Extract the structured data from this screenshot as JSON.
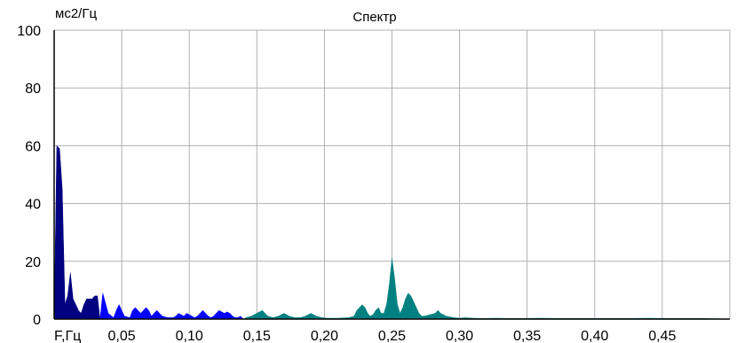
{
  "chart_data": {
    "type": "area",
    "title": "Спектр",
    "ylabel": "мс2/Гц",
    "xlabel": "F,Гц",
    "xlim": [
      0,
      0.5
    ],
    "ylim": [
      0,
      100
    ],
    "grid": true,
    "y_ticks": [
      "0",
      "20",
      "40",
      "60",
      "80",
      "100"
    ],
    "x_ticks": [
      {
        "value": 0.05,
        "label": "0,05"
      },
      {
        "value": 0.1,
        "label": "0,10"
      },
      {
        "value": 0.15,
        "label": "0,15"
      },
      {
        "value": 0.2,
        "label": "0,20"
      },
      {
        "value": 0.25,
        "label": "0,25"
      },
      {
        "value": 0.3,
        "label": "0,30"
      },
      {
        "value": 0.35,
        "label": "0,35"
      },
      {
        "value": 0.4,
        "label": "0,40"
      },
      {
        "value": 0.45,
        "label": "0,45"
      }
    ],
    "series": [
      {
        "color": "#000080",
        "x": [
          0.0,
          0.002,
          0.004,
          0.006,
          0.008,
          0.01,
          0.012,
          0.014,
          0.016,
          0.018,
          0.02,
          0.022,
          0.024,
          0.026,
          0.028,
          0.03,
          0.032,
          0.034
        ],
        "y": [
          0,
          60,
          59,
          45,
          5,
          8,
          16,
          7,
          5,
          3,
          2,
          5,
          7,
          7,
          7,
          8,
          8,
          0
        ]
      },
      {
        "color": "#0000ff",
        "x": [
          0.034,
          0.036,
          0.04,
          0.044,
          0.046,
          0.048,
          0.052,
          0.056,
          0.058,
          0.06,
          0.062,
          0.064,
          0.066,
          0.068,
          0.07,
          0.072,
          0.074,
          0.076,
          0.078,
          0.08,
          0.084,
          0.088,
          0.09,
          0.092,
          0.094,
          0.096,
          0.098,
          0.1,
          0.102,
          0.104,
          0.106,
          0.108,
          0.11,
          0.112,
          0.114,
          0.116,
          0.118,
          0.12,
          0.122,
          0.124,
          0.126,
          0.128,
          0.13,
          0.132,
          0.134,
          0.136,
          0.138,
          0.14
        ],
        "y": [
          0,
          9,
          2,
          0.5,
          3,
          5,
          1,
          0.5,
          3,
          4,
          3,
          2,
          3,
          4,
          3,
          1,
          2,
          3,
          2,
          1,
          0.5,
          0.5,
          1,
          2,
          1.5,
          1,
          2,
          1.5,
          1,
          0.5,
          1,
          2,
          3,
          2,
          1,
          0.5,
          1,
          2,
          3,
          2.5,
          2,
          2.5,
          2,
          1,
          0.5,
          0.5,
          1,
          0
        ]
      },
      {
        "color": "#008080",
        "x": [
          0.14,
          0.142,
          0.146,
          0.15,
          0.154,
          0.158,
          0.162,
          0.166,
          0.17,
          0.174,
          0.178,
          0.182,
          0.186,
          0.19,
          0.194,
          0.198,
          0.202,
          0.21,
          0.218,
          0.222,
          0.224,
          0.226,
          0.228,
          0.23,
          0.232,
          0.234,
          0.236,
          0.238,
          0.24,
          0.242,
          0.244,
          0.246,
          0.248,
          0.25,
          0.252,
          0.254,
          0.256,
          0.258,
          0.26,
          0.262,
          0.264,
          0.266,
          0.268,
          0.27,
          0.272,
          0.274,
          0.278,
          0.282,
          0.284,
          0.286,
          0.29,
          0.296,
          0.3,
          0.304,
          0.31,
          0.318,
          0.326,
          0.34,
          0.36,
          0.38,
          0.4,
          0.42,
          0.44,
          0.46,
          0.48,
          0.5
        ],
        "y": [
          0,
          0.5,
          1,
          2,
          3,
          1,
          0.5,
          1,
          2,
          1,
          0.5,
          0.5,
          1,
          2,
          1,
          0.5,
          0.3,
          0.3,
          0.5,
          1,
          3,
          4,
          5,
          4,
          2,
          1,
          1.5,
          3,
          4,
          2,
          2,
          5,
          12,
          21,
          14,
          5,
          2,
          4,
          7,
          9,
          8,
          6,
          4,
          2,
          1,
          1,
          1.5,
          2,
          3,
          2,
          1,
          0.5,
          0.3,
          0.5,
          0.3,
          0.2,
          0.3,
          0.2,
          0.3,
          0.2,
          0.2,
          0.2,
          0.3,
          0.2,
          0.2,
          0
        ]
      }
    ]
  }
}
